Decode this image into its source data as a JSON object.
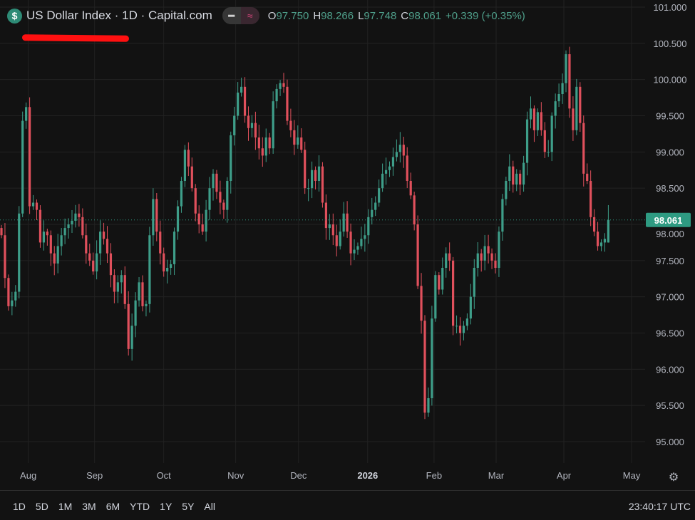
{
  "header": {
    "title": "US Dollar Index · 1D · Capital.com",
    "symbol_icon": "dollar-icon",
    "buttons": [
      "minus-icon",
      "approx-wave-icon"
    ],
    "ohlc": [
      {
        "k": "O",
        "v": "97.750"
      },
      {
        "k": "H",
        "v": "98.266"
      },
      {
        "k": "L",
        "v": "97.748"
      },
      {
        "k": "C",
        "v": "98.061"
      },
      {
        "k": "",
        "v": "+0.339 (+0.35%)"
      }
    ]
  },
  "colors": {
    "up": "#3e9e89",
    "down": "#e0505c",
    "background": "#121212",
    "grid": "#222222",
    "price_label": "#2e9b82"
  },
  "chart_data": {
    "type": "candlestick",
    "title": "US Dollar Index · 1D · Capital.com",
    "ylim": [
      95,
      101
    ],
    "y_ticks": [
      "101.000",
      "100.500",
      "100.000",
      "99.500",
      "99.000",
      "98.500",
      "98.000",
      "97.500",
      "97.000",
      "96.500",
      "96.000",
      "95.500",
      "95.000"
    ],
    "y_tick_values": [
      101,
      100.5,
      100,
      99.5,
      99,
      98.5,
      98,
      97.5,
      97,
      96.5,
      96,
      95.5,
      95
    ],
    "x_ticks": [
      {
        "label": "Aug",
        "index": 7.6
      },
      {
        "label": "Sep",
        "index": 26.4
      },
      {
        "label": "Oct",
        "index": 46
      },
      {
        "label": "Nov",
        "index": 66.4
      },
      {
        "label": "Dec",
        "index": 84.2
      },
      {
        "label": "2026",
        "index": 103.8,
        "year": true
      },
      {
        "label": "Feb",
        "index": 122.6
      },
      {
        "label": "Mar",
        "index": 140.2
      },
      {
        "label": "Apr",
        "index": 159.4
      },
      {
        "label": "May",
        "index": 178.6
      }
    ],
    "grid": true,
    "current_price": "98.061",
    "closes": [
      97.85,
      97.26,
      96.87,
      96.95,
      97.07,
      98.15,
      99.43,
      99.62,
      98.25,
      98.3,
      98.2,
      97.75,
      97.9,
      97.85,
      97.6,
      97.46,
      97.7,
      97.85,
      97.95,
      98.0,
      98.05,
      98.15,
      98.1,
      97.85,
      97.6,
      97.5,
      97.35,
      97.6,
      97.9,
      97.8,
      97.6,
      97.3,
      97.07,
      97.2,
      97.3,
      96.9,
      96.28,
      96.6,
      96.95,
      97.2,
      96.87,
      96.9,
      97.85,
      98.35,
      97.9,
      97.6,
      97.35,
      97.4,
      97.45,
      97.9,
      98.25,
      98.6,
      99.03,
      98.8,
      98.5,
      98.15,
      98.0,
      97.9,
      98.2,
      98.5,
      98.7,
      98.45,
      98.3,
      98.2,
      98.6,
      99.23,
      99.5,
      99.82,
      99.9,
      99.5,
      99.33,
      99.4,
      99.2,
      99.05,
      98.95,
      99.2,
      99.05,
      99.7,
      99.87,
      99.95,
      99.9,
      99.43,
      99.3,
      99.1,
      99.2,
      99.03,
      98.5,
      98.5,
      98.75,
      98.6,
      98.8,
      98.3,
      97.95,
      98.0,
      97.85,
      97.7,
      97.9,
      98.15,
      97.9,
      97.6,
      97.65,
      97.7,
      97.8,
      97.85,
      98.1,
      98.2,
      98.3,
      98.5,
      98.7,
      98.75,
      98.8,
      98.93,
      99.0,
      99.1,
      98.95,
      98.6,
      98.4,
      98.0,
      97.15,
      96.67,
      95.4,
      95.6,
      96.7,
      97.3,
      97.1,
      97.4,
      97.6,
      97.5,
      96.6,
      96.6,
      96.5,
      96.6,
      96.7,
      97.0,
      97.4,
      97.6,
      97.5,
      97.7,
      97.6,
      97.5,
      97.4,
      97.9,
      98.35,
      98.6,
      98.8,
      98.55,
      98.7,
      98.55,
      98.85,
      99.45,
      99.6,
      99.3,
      99.55,
      99.3,
      99.0,
      99.0,
      99.5,
      99.7,
      99.8,
      99.95,
      100.35,
      99.6,
      99.3,
      99.9,
      99.4,
      98.7,
      98.6,
      98.1,
      97.9,
      97.7,
      97.75,
      97.8
    ],
    "last_candle": {
      "open": 97.75,
      "high": 98.266,
      "low": 97.748,
      "close": 98.061
    }
  },
  "footer": {
    "ranges": [
      "1D",
      "5D",
      "1M",
      "3M",
      "6M",
      "YTD",
      "1Y",
      "5Y",
      "All"
    ],
    "clock": "23:40:17 UTC",
    "settings_icon": "gear-icon"
  }
}
